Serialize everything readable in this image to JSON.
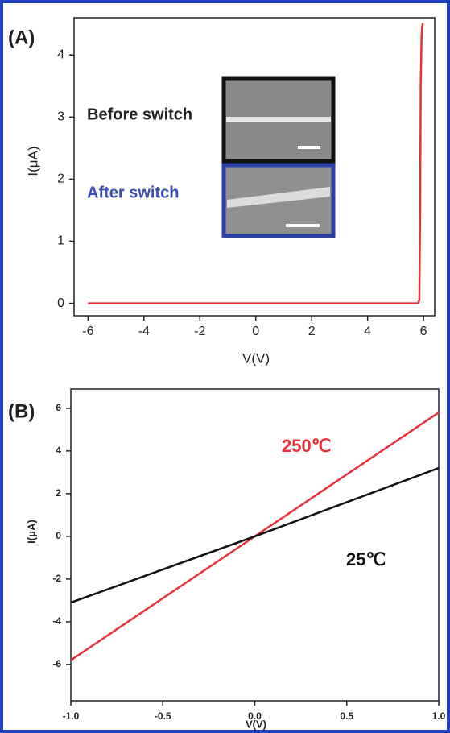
{
  "chart_data": [
    {
      "type": "line",
      "panel": "(A)",
      "x_label": "V(V)",
      "y_label": "I(μA)",
      "annotations": [
        "Before switch",
        "After switch"
      ],
      "x": [
        -6,
        5.8,
        5.85,
        5.88,
        5.9,
        5.93,
        5.95,
        5.97,
        6.0
      ],
      "series": [
        {
          "name": null,
          "color": "#e8303a",
          "values": [
            0,
            0,
            0.05,
            1.5,
            3.5,
            4.3,
            4.45,
            4.5,
            4.5
          ]
        }
      ],
      "xlim": [
        -6.5,
        6.4
      ],
      "xticks": [
        -6,
        -4,
        -2,
        0,
        2,
        4,
        6
      ],
      "ylim": [
        -0.2,
        4.6
      ],
      "yticks": [
        0,
        1,
        2,
        3,
        4
      ]
    },
    {
      "type": "line",
      "panel": "(B)",
      "x_label": "V(V)",
      "y_label": "I(μA)",
      "x": [
        -1,
        0,
        1
      ],
      "series": [
        {
          "name": "250℃",
          "color": "#e8303a",
          "values": [
            -5.8,
            0,
            5.8
          ]
        },
        {
          "name": "25℃",
          "color": "#111111",
          "values": [
            -3.1,
            0,
            3.2
          ]
        }
      ],
      "xlim": [
        -1,
        1
      ],
      "xticks": [
        {
          "value": -1,
          "label": "-1.0"
        },
        -0.5,
        {
          "value": 0,
          "label": "0.0"
        },
        0.5,
        {
          "value": 1,
          "label": "1.0"
        }
      ],
      "ylim": [
        -7.7,
        6.9
      ],
      "yticks": [
        -6,
        -4,
        -2,
        0,
        2,
        4,
        6
      ]
    }
  ]
}
